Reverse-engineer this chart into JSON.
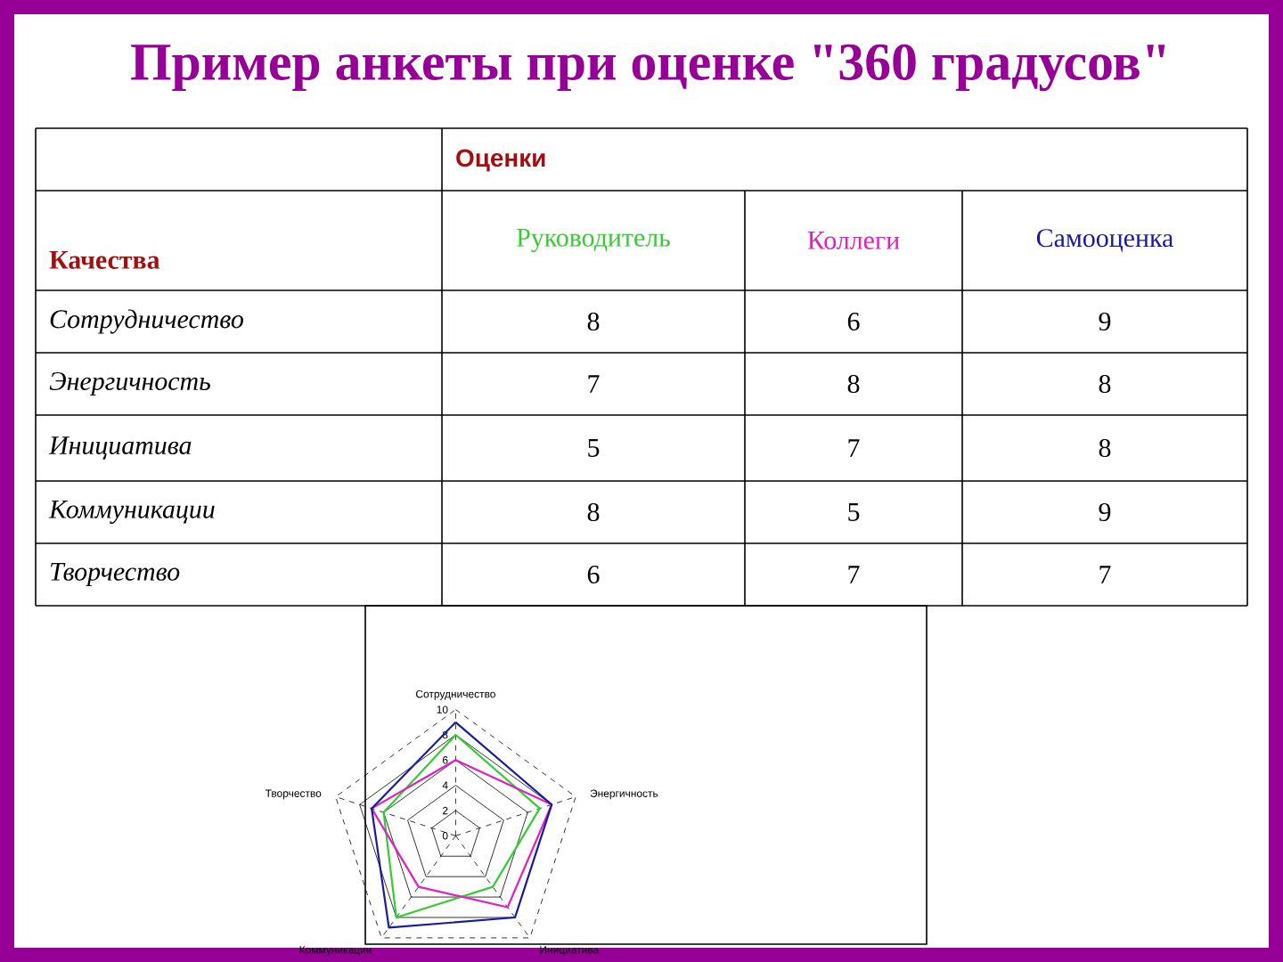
{
  "chart_data": {
    "type": "radar",
    "title": "Пример анкеты при оценке \"360 градусов\"",
    "legend_title": "Оценки",
    "annotations": [
      "Качества",
      "8",
      "6",
      "9",
      "7",
      "8",
      "8",
      "5",
      "7",
      "8",
      "8",
      "5",
      "9",
      "6",
      "7",
      "7"
    ],
    "categories": [
      "Сотрудничество",
      "Энергичность",
      "Инициатива",
      "Коммуникации",
      "Творчество"
    ],
    "series": [
      {
        "name": "Руководитель",
        "color": "#33cc33",
        "values": [
          8,
          7,
          5,
          8,
          6
        ]
      },
      {
        "name": "Коллеги",
        "color": "#e020c0",
        "values": [
          6,
          8,
          7,
          5,
          7
        ]
      },
      {
        "name": "Самооценка",
        "color": "#1a1a9c",
        "values": [
          9,
          8,
          8,
          9,
          7
        ]
      }
    ],
    "ylim": [
      0,
      10
    ],
    "yticks": [
      0,
      2,
      4,
      6,
      8,
      10
    ],
    "grid": true
  }
}
